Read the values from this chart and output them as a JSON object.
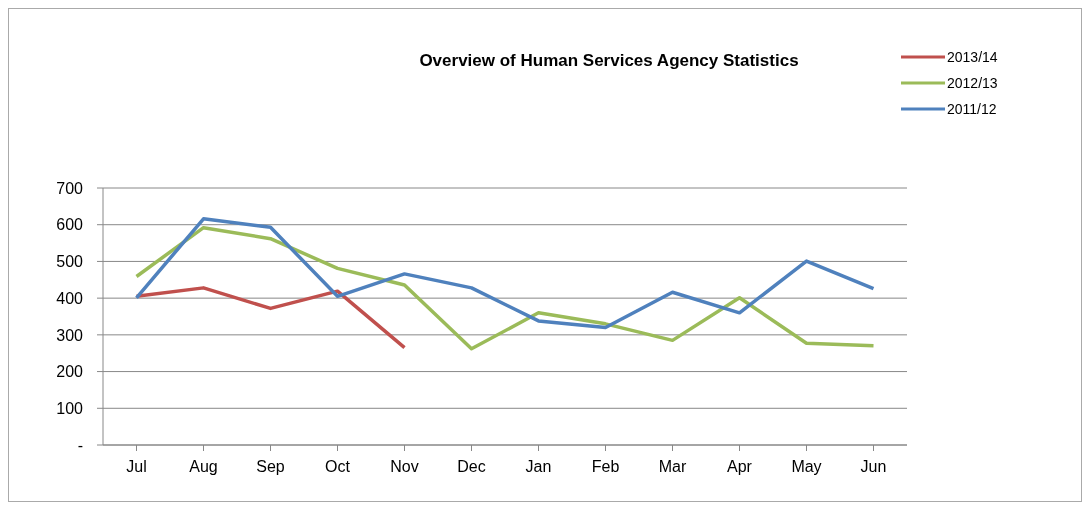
{
  "chart_data": {
    "type": "line",
    "title": "Overview of Human Services Agency Statistics",
    "categories": [
      "Jul",
      "Aug",
      "Sep",
      "Oct",
      "Nov",
      "Dec",
      "Jan",
      "Feb",
      "Mar",
      "Apr",
      "May",
      "Jun"
    ],
    "series": [
      {
        "name": "2013/14",
        "color": "#c0504d",
        "values": [
          405,
          428,
          372,
          419,
          265,
          null,
          null,
          null,
          null,
          null,
          null,
          null
        ]
      },
      {
        "name": "2012/13",
        "color": "#9bbb59",
        "values": [
          459,
          592,
          562,
          481,
          436,
          262,
          360,
          330,
          285,
          401,
          277,
          270
        ]
      },
      {
        "name": "2011/12",
        "color": "#4f81bd",
        "values": [
          401,
          616,
          593,
          405,
          466,
          428,
          338,
          320,
          416,
          360,
          501,
          426
        ]
      }
    ],
    "ylim": [
      0,
      700
    ],
    "yticks": [
      {
        "value": 0,
        "label": "-"
      },
      100,
      200,
      300,
      400,
      500,
      600,
      700
    ],
    "grid": "y",
    "legend": "top right",
    "marker": "none",
    "line_style": "solid"
  }
}
